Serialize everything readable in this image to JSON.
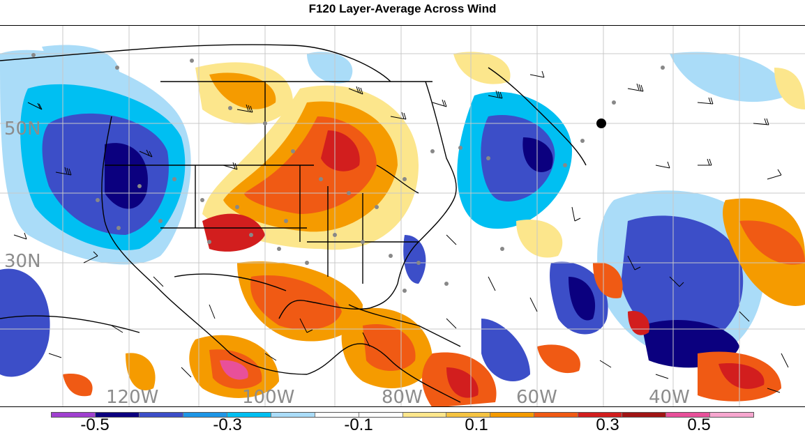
{
  "title": "F120 Layer-Average Across Wind",
  "map": {
    "lat_labels": [
      "50N",
      "30N"
    ],
    "lon_labels": [
      "120W",
      "100W",
      "80W",
      "60W",
      "40W"
    ]
  },
  "colorbar": {
    "colors": [
      "#a040d0",
      "#0b007f",
      "#3c4ec8",
      "#1e96e6",
      "#00bff2",
      "#aadcf8",
      "#ffffff",
      "#ffffff",
      "#fce68c",
      "#f5c341",
      "#f59b00",
      "#f05a14",
      "#d21e1e",
      "#a01414",
      "#e8509a",
      "#f7a6cf"
    ],
    "labels": [
      "-0.5",
      "-0.3",
      "-0.1",
      "0.1",
      "0.3",
      "0.5"
    ]
  }
}
